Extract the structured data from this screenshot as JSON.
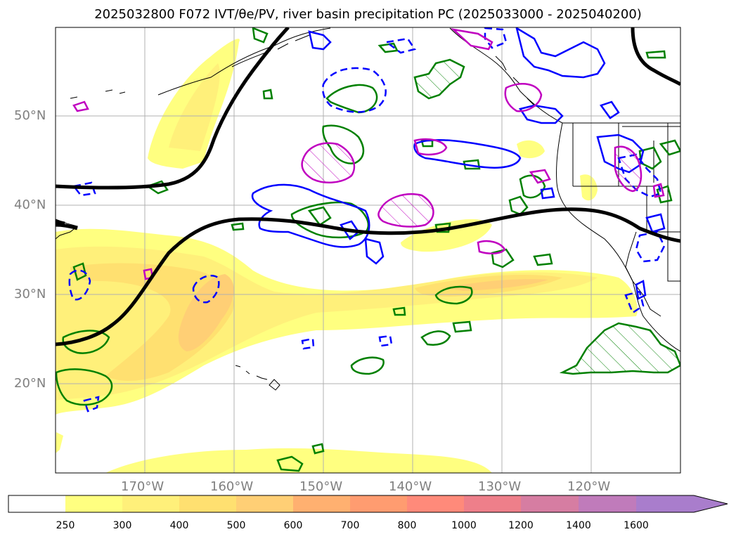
{
  "title": "2025032800 F072 IVT/θe/PV, river basin precipitation PC (2025033000 - 2025040200)",
  "map": {
    "lat_labels": [
      "50°N",
      "40°N",
      "30°N",
      "20°N"
    ],
    "lon_labels": [
      "170°W",
      "160°W",
      "150°W",
      "140°W",
      "130°W",
      "120°W"
    ]
  },
  "colorbar": {
    "labels": [
      "250",
      "300",
      "400",
      "500",
      "600",
      "700",
      "800",
      "1000",
      "1200",
      "1400",
      "1600"
    ],
    "colors": [
      "#ffffff",
      "#ffff80",
      "#fff07a",
      "#ffe070",
      "#ffcf75",
      "#ffb070",
      "#ff9c70",
      "#ff8a7a",
      "#ee7f8a",
      "#d67da2",
      "#c07bbb",
      "#a97dcc"
    ]
  },
  "colors": {
    "ridge_line": "#000000",
    "contour_blue": "#0000ff",
    "contour_green": "#008000",
    "contour_magenta": "#c000c0",
    "gridline": "#b0b0b0",
    "tick_label": "#808080"
  }
}
